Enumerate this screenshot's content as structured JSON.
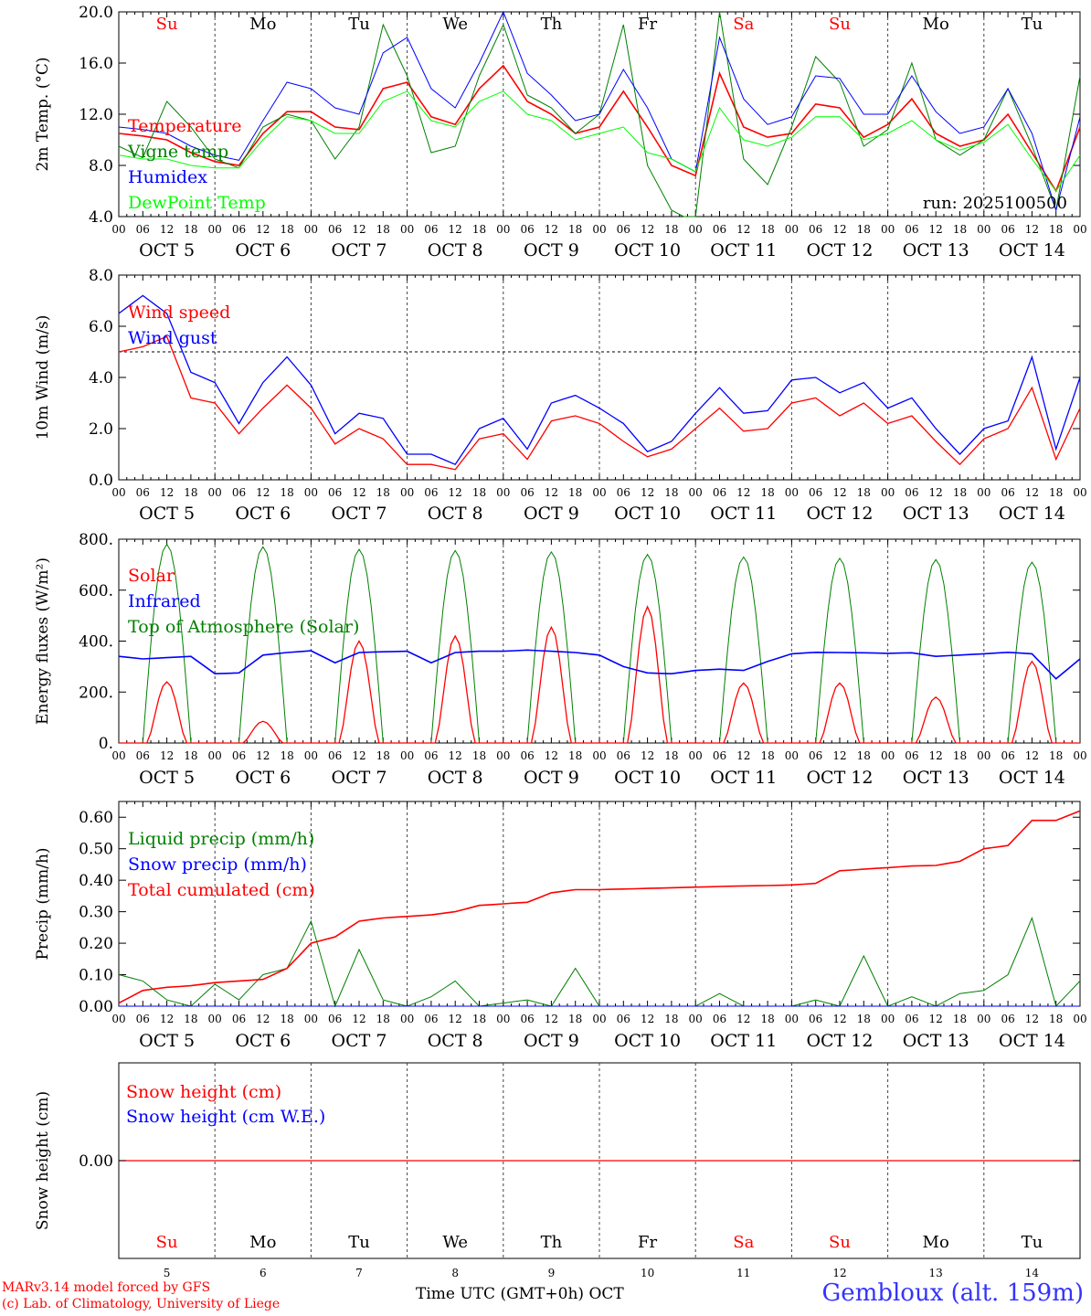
{
  "colors": {
    "temperature": "#ff0000",
    "vigne": "#008000",
    "humidex": "#0000ff",
    "dewpoint": "#00ff00",
    "solar": "#ff0000",
    "infrared": "#0000ff",
    "toa": "#008000",
    "liquid": "#008000",
    "snow": "#0000ff",
    "cumul": "#ff0000",
    "weekend": "#ff0000",
    "weekday": "#000000",
    "location": "#3333ff"
  },
  "days": [
    {
      "abbr": "Su",
      "date": "OCT  5",
      "num": "5",
      "weekend": true
    },
    {
      "abbr": "Mo",
      "date": "OCT  6",
      "num": "6",
      "weekend": false
    },
    {
      "abbr": "Tu",
      "date": "OCT  7",
      "num": "7",
      "weekend": false
    },
    {
      "abbr": "We",
      "date": "OCT  8",
      "num": "8",
      "weekend": false
    },
    {
      "abbr": "Th",
      "date": "OCT  9",
      "num": "9",
      "weekend": false
    },
    {
      "abbr": "Fr",
      "date": "OCT 10",
      "num": "10",
      "weekend": false
    },
    {
      "abbr": "Sa",
      "date": "OCT 11",
      "num": "11",
      "weekend": true
    },
    {
      "abbr": "Su",
      "date": "OCT 12",
      "num": "12",
      "weekend": true
    },
    {
      "abbr": "Mo",
      "date": "OCT 13",
      "num": "13",
      "weekend": false
    },
    {
      "abbr": "Tu",
      "date": "OCT 14",
      "num": "14",
      "weekend": false
    }
  ],
  "hour_labels": [
    "00",
    "06",
    "12",
    "18"
  ],
  "end_hour_label": "00",
  "run_label": "run: 2025100500",
  "footer": {
    "model": "MARv3.14 model forced by GFS",
    "copyright": "(c) Lab. of Climatology, University of Liege",
    "time_axis": "Time UTC (GMT+0h) OCT",
    "location": "Gembloux (alt. 159m)"
  },
  "chart_data": [
    {
      "type": "line",
      "id": "temp",
      "ylabel": "2m Temp. (°C)",
      "ylim": [
        4,
        20
      ],
      "ticks": [
        "4.0",
        "8.0",
        "12.0",
        "16.0",
        "20.0"
      ],
      "x_hours": [
        0,
        6,
        12,
        18,
        24,
        30,
        36,
        42,
        48,
        54,
        60,
        66,
        72,
        78,
        84,
        90,
        96,
        102,
        108,
        114,
        120,
        126,
        132,
        138,
        144,
        150,
        156,
        162,
        168,
        174,
        180,
        186,
        192,
        198,
        204,
        210,
        216,
        222,
        228,
        234,
        240
      ],
      "series": [
        {
          "name": "Temperature",
          "color_key": "temperature",
          "values": [
            10.5,
            10.3,
            10.0,
            9.0,
            8.3,
            8.0,
            10.5,
            12.2,
            12.2,
            11.0,
            10.8,
            14.0,
            14.5,
            11.8,
            11.2,
            14.0,
            15.8,
            13.0,
            12.0,
            10.5,
            11.0,
            13.8,
            11.0,
            8.0,
            7.2,
            15.2,
            11.0,
            10.2,
            10.5,
            12.8,
            12.5,
            10.2,
            11.2,
            13.2,
            10.5,
            9.5,
            10.0,
            12.0,
            9.0,
            6.0,
            11.0
          ]
        },
        {
          "name": "Vigne temp",
          "color_key": "vigne",
          "values": [
            9.5,
            8.6,
            13.0,
            11.0,
            8.5,
            7.8,
            11.0,
            12.0,
            11.5,
            8.5,
            11.0,
            19.0,
            15.0,
            9.0,
            9.5,
            15.0,
            19.0,
            13.5,
            12.5,
            10.5,
            12.0,
            19.0,
            8.0,
            4.5,
            3.5,
            20.0,
            8.5,
            6.5,
            11.0,
            16.5,
            14.5,
            9.5,
            10.8,
            16.0,
            10.0,
            8.8,
            10.0,
            14.0,
            9.5,
            4.5,
            15.0
          ]
        },
        {
          "name": "Humidex",
          "color_key": "humidex",
          "values": [
            11.0,
            10.8,
            10.5,
            9.5,
            8.8,
            8.4,
            11.5,
            14.5,
            14.0,
            12.5,
            12.0,
            16.8,
            18.0,
            14.0,
            12.5,
            16.0,
            20.0,
            15.2,
            13.5,
            11.5,
            12.0,
            15.5,
            12.5,
            8.5,
            7.5,
            18.0,
            13.2,
            11.2,
            11.8,
            15.0,
            14.8,
            12.0,
            12.0,
            15.0,
            12.2,
            10.5,
            11.0,
            14.0,
            10.5,
            4.5,
            11.8
          ]
        },
        {
          "name": "DewPoint Temp",
          "color_key": "dewpoint",
          "values": [
            8.8,
            8.5,
            8.5,
            8.0,
            7.8,
            7.8,
            10.0,
            11.8,
            11.5,
            10.5,
            10.5,
            13.0,
            13.8,
            11.5,
            11.0,
            13.0,
            13.8,
            12.0,
            11.5,
            10.0,
            10.5,
            11.0,
            9.0,
            8.5,
            7.5,
            12.5,
            10.0,
            9.5,
            10.2,
            11.8,
            11.8,
            10.0,
            10.5,
            11.5,
            10.0,
            9.2,
            9.8,
            11.2,
            8.5,
            6.0,
            8.8
          ]
        }
      ],
      "annotation": "run: 2025100500"
    },
    {
      "type": "line",
      "id": "wind",
      "ylabel": "10m Wind (m/s)",
      "ylim": [
        0,
        8
      ],
      "ticks": [
        "0.0",
        "2.0",
        "4.0",
        "6.0",
        "8.0"
      ],
      "reference_line": 5,
      "x_hours": [
        0,
        6,
        12,
        18,
        24,
        30,
        36,
        42,
        48,
        54,
        60,
        66,
        72,
        78,
        84,
        90,
        96,
        102,
        108,
        114,
        120,
        126,
        132,
        138,
        144,
        150,
        156,
        162,
        168,
        174,
        180,
        186,
        192,
        198,
        204,
        210,
        216,
        222,
        228,
        234,
        240
      ],
      "series": [
        {
          "name": "Wind speed",
          "color_key": "temperature",
          "values": [
            5.0,
            5.2,
            5.6,
            3.2,
            3.0,
            1.8,
            2.8,
            3.7,
            2.8,
            1.4,
            2.0,
            1.6,
            0.6,
            0.6,
            0.4,
            1.6,
            1.8,
            0.8,
            2.3,
            2.5,
            2.2,
            1.5,
            0.9,
            1.2,
            2.0,
            2.8,
            1.9,
            2.0,
            3.0,
            3.2,
            2.5,
            3.0,
            2.2,
            2.5,
            1.5,
            0.6,
            1.6,
            2.0,
            3.6,
            0.8,
            2.8
          ]
        },
        {
          "name": "Wind gust",
          "color_key": "humidex",
          "values": [
            6.5,
            7.2,
            6.5,
            4.2,
            3.8,
            2.2,
            3.8,
            4.8,
            3.7,
            1.8,
            2.6,
            2.4,
            1.0,
            1.0,
            0.6,
            2.0,
            2.4,
            1.2,
            3.0,
            3.3,
            2.8,
            2.2,
            1.1,
            1.5,
            2.6,
            3.6,
            2.6,
            2.7,
            3.9,
            4.0,
            3.4,
            3.8,
            2.8,
            3.2,
            2.0,
            1.0,
            2.0,
            2.3,
            4.8,
            1.2,
            4.0
          ]
        }
      ]
    },
    {
      "type": "line",
      "id": "energy",
      "ylabel": "Energy fluxes (W/m²)",
      "ylim": [
        0,
        800
      ],
      "ticks": [
        "0.",
        "200.",
        "400.",
        "600.",
        "800."
      ],
      "solar_peaks": [
        240,
        85,
        400,
        420,
        455,
        535,
        235,
        235,
        180,
        320
      ],
      "solar_window_hours": [
        7,
        17
      ],
      "toa_peaks": [
        780,
        770,
        760,
        755,
        750,
        740,
        730,
        725,
        720,
        710
      ],
      "toa_window_hours": [
        6,
        18
      ],
      "infrared": {
        "x_hours": [
          0,
          6,
          12,
          18,
          24,
          30,
          36,
          42,
          48,
          54,
          60,
          66,
          72,
          78,
          84,
          90,
          96,
          102,
          108,
          114,
          120,
          126,
          132,
          138,
          144,
          150,
          156,
          162,
          168,
          174,
          180,
          186,
          192,
          198,
          204,
          210,
          216,
          222,
          228,
          234,
          240
        ],
        "values": [
          340,
          330,
          335,
          340,
          272,
          275,
          345,
          355,
          362,
          315,
          355,
          358,
          360,
          315,
          355,
          360,
          360,
          365,
          360,
          355,
          345,
          300,
          275,
          272,
          285,
          290,
          285,
          320,
          350,
          356,
          355,
          354,
          352,
          354,
          340,
          345,
          350,
          356,
          350,
          252,
          330
        ]
      },
      "series_names": [
        "Solar",
        "Infrared",
        "Top of Atmosphere (Solar)"
      ]
    },
    {
      "type": "line",
      "id": "precip",
      "ylabel": "Precip (mm/h)",
      "ylim": [
        0,
        0.65
      ],
      "ticks": [
        "0.00",
        "0.10",
        "0.20",
        "0.30",
        "0.40",
        "0.50",
        "0.60"
      ],
      "x_hours": [
        0,
        6,
        12,
        18,
        24,
        30,
        36,
        42,
        48,
        54,
        60,
        66,
        72,
        78,
        84,
        90,
        96,
        102,
        108,
        114,
        120,
        126,
        132,
        138,
        144,
        150,
        156,
        162,
        168,
        174,
        180,
        186,
        192,
        198,
        204,
        210,
        216,
        222,
        228,
        234,
        240
      ],
      "series": [
        {
          "name": "Liquid precip (mm/h)",
          "color_key": "liquid",
          "values": [
            0.1,
            0.08,
            0.02,
            0.0,
            0.07,
            0.02,
            0.1,
            0.12,
            0.27,
            0.0,
            0.18,
            0.02,
            0.0,
            0.03,
            0.08,
            0.0,
            0.01,
            0.02,
            0.0,
            0.12,
            0.0,
            0.0,
            0.0,
            0.0,
            0.0,
            0.04,
            0.0,
            0.0,
            0.0,
            0.02,
            0.0,
            0.16,
            0.0,
            0.03,
            0.0,
            0.04,
            0.05,
            0.1,
            0.28,
            0.0,
            0.08
          ]
        },
        {
          "name": "Snow precip (mm/h)",
          "color_key": "snow",
          "values": [
            0,
            0,
            0,
            0,
            0,
            0,
            0,
            0,
            0,
            0,
            0,
            0,
            0,
            0,
            0,
            0,
            0,
            0,
            0,
            0,
            0,
            0,
            0,
            0,
            0,
            0,
            0,
            0,
            0,
            0,
            0,
            0,
            0,
            0,
            0,
            0,
            0,
            0,
            0,
            0,
            0
          ]
        },
        {
          "name": "Total cumulated (cm)",
          "color_key": "cumul",
          "values": [
            0.01,
            0.05,
            0.06,
            0.065,
            0.075,
            0.08,
            0.085,
            0.12,
            0.2,
            0.22,
            0.27,
            0.28,
            0.285,
            0.29,
            0.3,
            0.32,
            0.325,
            0.33,
            0.36,
            0.37,
            0.37,
            0.372,
            0.374,
            0.376,
            0.378,
            0.38,
            0.382,
            0.383,
            0.385,
            0.39,
            0.43,
            0.435,
            0.44,
            0.445,
            0.447,
            0.46,
            0.5,
            0.51,
            0.59,
            0.59,
            0.62
          ]
        }
      ]
    },
    {
      "type": "line",
      "id": "snowh",
      "ylabel": "Snow height (cm)",
      "ticks": [
        "0.00"
      ],
      "series": [
        {
          "name": "Snow height (cm)",
          "color_key": "cumul",
          "values": [
            0.0
          ]
        },
        {
          "name": "Snow height (cm W.E.)",
          "color_key": "snow",
          "values": [
            0.0
          ]
        }
      ]
    }
  ]
}
